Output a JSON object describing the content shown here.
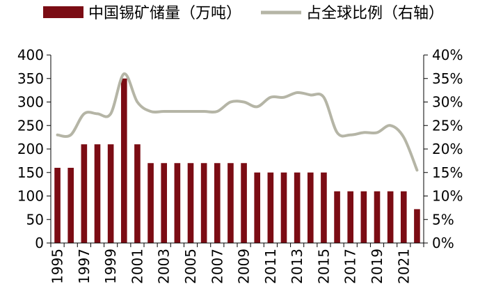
{
  "chart_data": {
    "type": "bar",
    "title": "",
    "xlabel": "",
    "ylabel": "",
    "years": [
      "1995",
      "1996",
      "1997",
      "1998",
      "1999",
      "2000",
      "2001",
      "2002",
      "2003",
      "2004",
      "2005",
      "2006",
      "2007",
      "2008",
      "2009",
      "2010",
      "2011",
      "2012",
      "2013",
      "2014",
      "2015",
      "2016",
      "2017",
      "2018",
      "2019",
      "2020",
      "2021",
      "2022"
    ],
    "x_tick_labels": [
      "1995",
      "1997",
      "1999",
      "2001",
      "2003",
      "2005",
      "2007",
      "2009",
      "2011",
      "2013",
      "2015",
      "2017",
      "2019",
      "2021"
    ],
    "ylim": [
      0,
      400
    ],
    "yticks": [
      0,
      50,
      100,
      150,
      200,
      250,
      300,
      350,
      400
    ],
    "ylim_right": [
      0,
      40
    ],
    "yticks_right_labels": [
      "0%",
      "5%",
      "10%",
      "15%",
      "20%",
      "25%",
      "30%",
      "35%",
      "40%"
    ],
    "legend_position": "top",
    "grid": false,
    "series": [
      {
        "name": "中国锡矿储量（万吨）",
        "type": "bar",
        "axis": "left",
        "color": "#7b0c14",
        "values": [
          160,
          160,
          210,
          210,
          210,
          350,
          210,
          170,
          170,
          170,
          170,
          170,
          170,
          170,
          170,
          150,
          150,
          150,
          150,
          150,
          150,
          110,
          110,
          110,
          110,
          110,
          110,
          72
        ]
      },
      {
        "name": "占全球比例（右轴）",
        "type": "line",
        "axis": "right",
        "color": "#b5b5a6",
        "values": [
          23,
          23,
          27.5,
          27.5,
          27.5,
          36,
          30,
          28,
          28,
          28,
          28,
          28,
          28,
          30,
          30,
          29,
          31,
          31,
          32,
          31.5,
          31,
          23.5,
          23,
          23.5,
          23.5,
          25,
          22.5,
          15.5
        ]
      }
    ]
  }
}
